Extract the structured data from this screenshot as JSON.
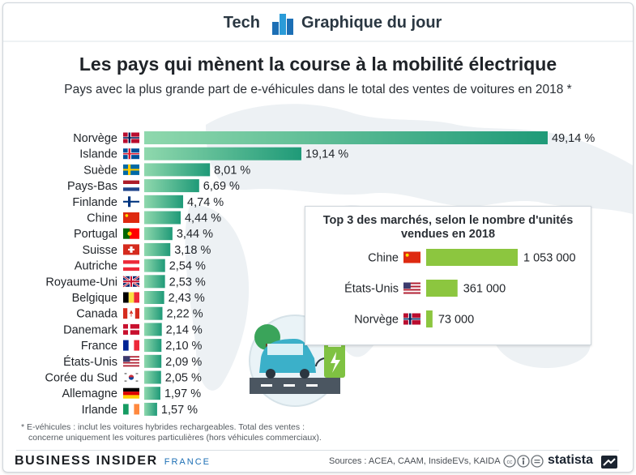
{
  "header": {
    "left_label": "Tech",
    "right_label": "Graphique du jour",
    "logo_icon": "bar-logo-icon"
  },
  "title": "Les pays qui mènent la course à la mobilité électrique",
  "subtitle": "Pays avec la plus grande part de e-véhicules dans le total des ventes de voitures en 2018 *",
  "colors": {
    "bar_start": "#8fd8ad",
    "bar_end": "#1f9a78",
    "inset_bar": "#8cc63f",
    "text": "#1f2328"
  },
  "chart_data": [
    {
      "type": "bar",
      "orientation": "horizontal",
      "categories": [
        "Norvège",
        "Islande",
        "Suède",
        "Pays-Bas",
        "Finlande",
        "Chine",
        "Portugal",
        "Suisse",
        "Autriche",
        "Royaume-Uni",
        "Belgique",
        "Canada",
        "Danemark",
        "France",
        "États-Unis",
        "Corée du Sud",
        "Allemagne",
        "Irlande"
      ],
      "values": [
        49.14,
        19.14,
        8.01,
        6.69,
        4.74,
        4.44,
        3.44,
        3.18,
        2.54,
        2.53,
        2.43,
        2.22,
        2.14,
        2.1,
        2.09,
        2.05,
        1.97,
        1.57
      ],
      "labels": [
        "49,14 %",
        "19,14 %",
        "8,01 %",
        "6,69 %",
        "4,74 %",
        "4,44 %",
        "3,44 %",
        "3,18 %",
        "2,54 %",
        "2,53 %",
        "2,43 %",
        "2,22 %",
        "2,14 %",
        "2,10 %",
        "2,09 %",
        "2,05 %",
        "1,97 %",
        "1,57 %"
      ],
      "flags": [
        "flag-norway-icon",
        "flag-iceland-icon",
        "flag-sweden-icon",
        "flag-netherlands-icon",
        "flag-finland-icon",
        "flag-china-icon",
        "flag-portugal-icon",
        "flag-switzerland-icon",
        "flag-austria-icon",
        "flag-uk-icon",
        "flag-belgium-icon",
        "flag-canada-icon",
        "flag-denmark-icon",
        "flag-france-icon",
        "flag-usa-icon",
        "flag-south-korea-icon",
        "flag-germany-icon",
        "flag-ireland-icon"
      ],
      "xlim": [
        0,
        49.14
      ],
      "grid": false
    },
    {
      "type": "bar",
      "orientation": "horizontal",
      "title": "Top 3 des marchés, selon le nombre d'unités vendues en 2018",
      "categories": [
        "Chine",
        "États-Unis",
        "Norvège"
      ],
      "values": [
        1053000,
        361000,
        73000
      ],
      "labels": [
        "1 053 000",
        "361 000",
        "73 000"
      ],
      "flags": [
        "flag-china-icon",
        "flag-usa-icon",
        "flag-norway-icon"
      ],
      "xlim": [
        0,
        1053000
      ]
    }
  ],
  "inset": {
    "title_line1": "Top 3 des marchés, selon le nombre d'unités",
    "title_line2": "vendues en 2018"
  },
  "footnote": {
    "line1": "* E-véhicules : inclut les voitures hybrides rechargeables. Total des ventes :",
    "line2": "concerne uniquement les voitures particulières (hors véhicules commerciaux)."
  },
  "footer": {
    "brand": "BUSINESS INSIDER",
    "brand_suffix": "FRANCE",
    "sources": "Sources : ACEA, CAAM, InsideEVs, KAIDA",
    "license_icons": "creative-commons-icons",
    "statista": "statista"
  }
}
